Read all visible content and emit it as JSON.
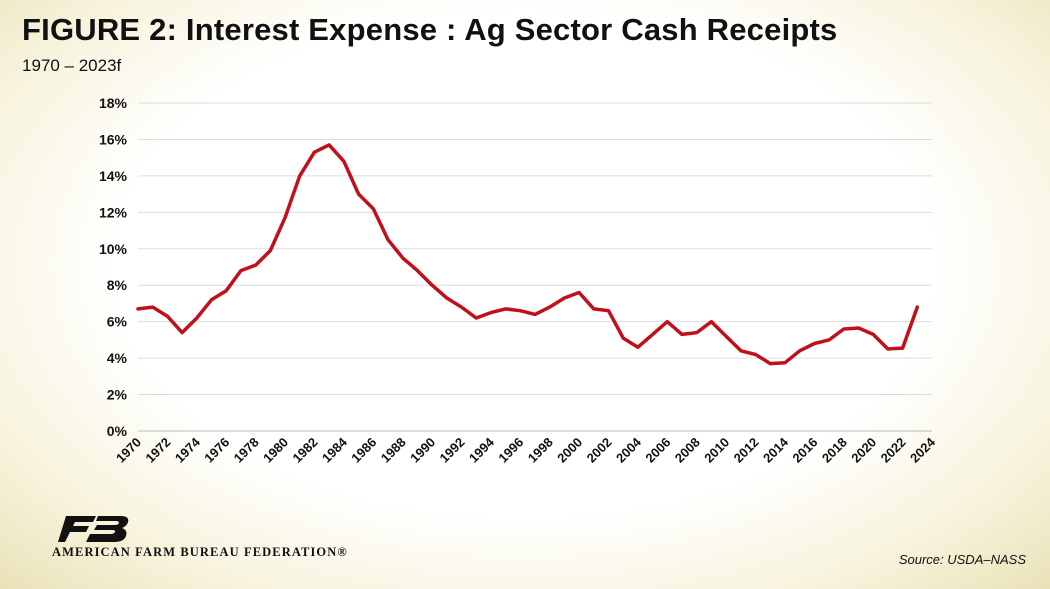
{
  "header": {
    "title": "FIGURE  2:  Interest Expense : Ag Sector Cash Receipts",
    "subtitle": "1970 – 2023f"
  },
  "footer": {
    "organization": "AMERICAN FARM BUREAU FEDERATION®",
    "logo_text": "FB",
    "source": "Source: USDA–NASS"
  },
  "colors": {
    "line": "#c0111a",
    "grid": "#dddddd",
    "logo": "#111111"
  },
  "chart_data": {
    "type": "line",
    "title": "Interest Expense : Ag Sector Cash Receipts",
    "xlabel": "",
    "ylabel": "",
    "xlim": [
      1970,
      2024
    ],
    "ylim": [
      0,
      18
    ],
    "grid": true,
    "legend": "none",
    "y_ticks": [
      0,
      2,
      4,
      6,
      8,
      10,
      12,
      14,
      16,
      18
    ],
    "y_tick_labels": [
      "0%",
      "2%",
      "4%",
      "6%",
      "8%",
      "10%",
      "12%",
      "14%",
      "16%",
      "18%"
    ],
    "x_ticks": [
      "1970",
      "1972",
      "1974",
      "1976",
      "1978",
      "1980",
      "1982",
      "1984",
      "1986",
      "1988",
      "1990",
      "1992",
      "1994",
      "1996",
      "1998",
      "2000",
      "2002",
      "2004",
      "2006",
      "2008",
      "2010",
      "2012",
      "2014",
      "2016",
      "2018",
      "2020",
      "2022",
      "2024"
    ],
    "series": [
      {
        "name": "Interest Expense / Cash Receipts (%)",
        "x": [
          1970,
          1971,
          1972,
          1973,
          1974,
          1975,
          1976,
          1977,
          1978,
          1979,
          1980,
          1981,
          1982,
          1983,
          1984,
          1985,
          1986,
          1987,
          1988,
          1989,
          1990,
          1991,
          1992,
          1993,
          1994,
          1995,
          1996,
          1997,
          1998,
          1999,
          2000,
          2001,
          2002,
          2003,
          2004,
          2005,
          2006,
          2007,
          2008,
          2009,
          2010,
          2011,
          2012,
          2013,
          2014,
          2015,
          2016,
          2017,
          2018,
          2019,
          2020,
          2021,
          2022,
          2023
        ],
        "values": [
          6.7,
          6.8,
          6.3,
          5.4,
          6.2,
          7.2,
          7.7,
          8.8,
          9.1,
          9.9,
          11.7,
          14.0,
          15.3,
          15.7,
          14.8,
          13.0,
          12.2,
          10.5,
          9.5,
          8.8,
          8.0,
          7.3,
          6.8,
          6.2,
          6.5,
          6.7,
          6.6,
          6.4,
          6.8,
          7.3,
          7.6,
          6.7,
          6.6,
          5.1,
          4.6,
          5.3,
          6.0,
          5.3,
          5.4,
          6.0,
          5.2,
          4.4,
          4.2,
          3.7,
          3.75,
          4.4,
          4.8,
          5.0,
          5.6,
          5.65,
          5.3,
          4.5,
          4.55,
          6.8
        ]
      }
    ]
  }
}
